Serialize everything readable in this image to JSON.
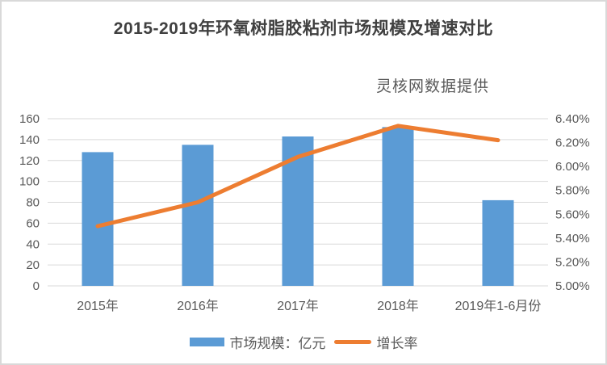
{
  "header": {
    "title": "2015-2019年环氧树脂胶粘剂市场规模及增速对比",
    "subtitle": "灵核网数据提供"
  },
  "chart_data": {
    "type": "bar",
    "subtype": "combo-bar-line-dual-axis",
    "categories": [
      "2015年",
      "2016年",
      "2017年",
      "2018年",
      "2019年1-6月份"
    ],
    "series": [
      {
        "name": "市场规模：亿元",
        "type": "bar",
        "axis": "left",
        "color": "#5B9BD5",
        "values": [
          128,
          135,
          143,
          152,
          82
        ]
      },
      {
        "name": "增长率",
        "type": "line",
        "axis": "right",
        "color": "#ED7D31",
        "values": [
          5.5,
          5.7,
          6.08,
          6.34,
          6.22
        ]
      }
    ],
    "left_axis": {
      "min": 0,
      "max": 160,
      "step": 20,
      "tick_labels": [
        "0",
        "20",
        "40",
        "60",
        "80",
        "100",
        "120",
        "140",
        "160"
      ]
    },
    "right_axis": {
      "min": 5.0,
      "max": 6.4,
      "step": 0.2,
      "tick_labels": [
        "5.00%",
        "5.20%",
        "5.40%",
        "5.60%",
        "5.80%",
        "6.00%",
        "6.20%",
        "6.40%"
      ]
    },
    "grid": true,
    "legend_position": "bottom",
    "colors": {
      "bar": "#5B9BD5",
      "line": "#ED7D31",
      "gridline": "#D9D9D9",
      "axis_text": "#595959",
      "title_text": "#404040",
      "border": "#D9D9D9"
    }
  }
}
